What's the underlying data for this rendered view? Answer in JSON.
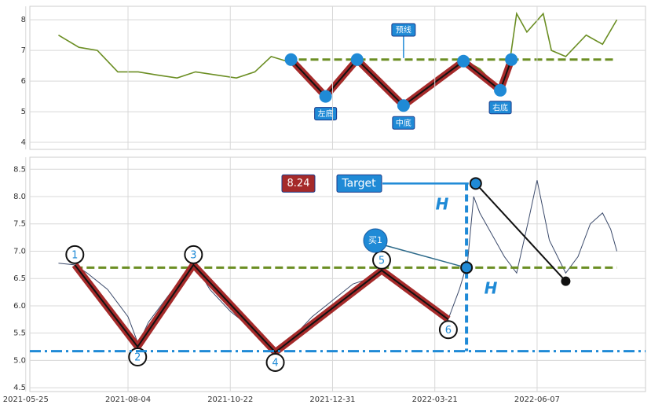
{
  "chart_data": [
    {
      "type": "line",
      "xlim": [
        2,
        303
      ],
      "ylim": [
        3.77,
        8.44
      ],
      "yticks": [
        4,
        5,
        6,
        7,
        8
      ],
      "grid": true,
      "series": [
        {
          "color": "#6b8e23",
          "x": [
            16,
            26,
            35,
            45,
            55,
            64,
            74,
            83,
            93,
            103,
            112,
            120,
            130,
            137,
            147,
            155,
            162,
            172,
            185,
            195,
            205,
            214,
            222,
            232,
            237,
            240,
            245,
            253,
            257,
            264,
            274,
            282,
            289
          ],
          "values": [
            7.5,
            7.1,
            7.0,
            6.3,
            6.3,
            6.2,
            6.1,
            6.3,
            6.2,
            6.1,
            6.3,
            6.8,
            6.6,
            6.3,
            5.5,
            6.0,
            6.7,
            6.1,
            5.2,
            5.6,
            6.2,
            6.7,
            6.4,
            5.7,
            6.8,
            8.2,
            7.6,
            8.2,
            7.0,
            6.8,
            7.5,
            7.2,
            8.0
          ]
        }
      ],
      "pattern": {
        "color": "#a52a2a",
        "marker_color": "#1f8ad6",
        "x": [
          129.7,
          146.6,
          162,
          184.7,
          214,
          232,
          237.4
        ],
        "values": [
          6.7,
          5.5,
          6.7,
          5.2,
          6.65,
          5.7,
          6.7
        ],
        "labels": [
          null,
          "左底",
          null,
          "中底",
          null,
          "右底",
          null
        ]
      },
      "neckline": {
        "value": 6.7,
        "x": [
          133.5,
          289
        ],
        "color": "#6b8e23"
      },
      "forecast": {
        "text": "预线",
        "x": 184.7,
        "y": 7.67
      }
    },
    {
      "type": "line",
      "xlim": [
        2,
        303
      ],
      "ylim": [
        4.43,
        8.72
      ],
      "yticks": [
        4.5,
        {
          "value": 5,
          "label": "5.0"
        },
        5.5,
        {
          "value": 6,
          "label": "6.0"
        },
        6.5,
        {
          "value": 7,
          "label": "7.0"
        },
        7.5,
        {
          "value": 8,
          "label": "8.0"
        },
        8.5
      ],
      "xticks": [
        {
          "value": 0,
          "label": "2021-05-25"
        },
        {
          "value": 50,
          "label": "2021-08-04"
        },
        {
          "value": 100,
          "label": "2021-10-22"
        },
        {
          "value": 150,
          "label": "2021-12-31"
        },
        {
          "value": 200,
          "label": "2022-03-21"
        },
        {
          "value": 250,
          "label": "2022-06-07"
        }
      ],
      "grid": true,
      "series": [
        {
          "color": "#3b4a6b",
          "x": [
            16,
            24,
            30,
            40,
            50,
            55,
            60,
            68,
            76,
            82,
            90,
            100,
            110,
            118,
            122,
            130,
            140,
            150,
            160,
            168,
            174,
            182,
            190,
            200,
            206,
            212,
            216,
            219,
            222,
            228,
            234,
            240,
            246,
            250,
            256,
            264,
            270,
            276,
            282,
            286,
            289
          ],
          "values": [
            6.78,
            6.75,
            6.6,
            6.3,
            5.8,
            5.3,
            5.7,
            6.1,
            6.5,
            6.8,
            6.3,
            5.9,
            5.6,
            5.3,
            5.2,
            5.4,
            5.8,
            6.1,
            6.4,
            6.5,
            6.7,
            6.5,
            6.2,
            5.9,
            5.7,
            6.3,
            6.8,
            8.0,
            7.7,
            7.3,
            6.9,
            6.6,
            7.6,
            8.3,
            7.2,
            6.6,
            6.9,
            7.5,
            7.7,
            7.4,
            7.0
          ]
        }
      ],
      "pattern": {
        "color": "#a52a2a",
        "x": [
          24,
          54.7,
          82,
          122,
          174,
          206.6
        ],
        "values": [
          6.75,
          5.25,
          6.75,
          5.15,
          6.65,
          5.75
        ],
        "labels": [
          "1",
          "2",
          "3",
          "4",
          "5",
          "6"
        ]
      },
      "neckline": {
        "value": 6.7,
        "x": [
          24,
          289
        ],
        "color": "#6b8e23"
      },
      "support": {
        "value": 5.17,
        "color": "#1f8ad6"
      },
      "buy": {
        "x": 215.5,
        "y": 6.7,
        "label": "买1"
      },
      "target": {
        "x": 220,
        "value": 8.24,
        "value_label": "8.24",
        "text": "Target"
      },
      "exit": {
        "x": 264,
        "y": 6.45
      },
      "height_label": "H"
    }
  ]
}
